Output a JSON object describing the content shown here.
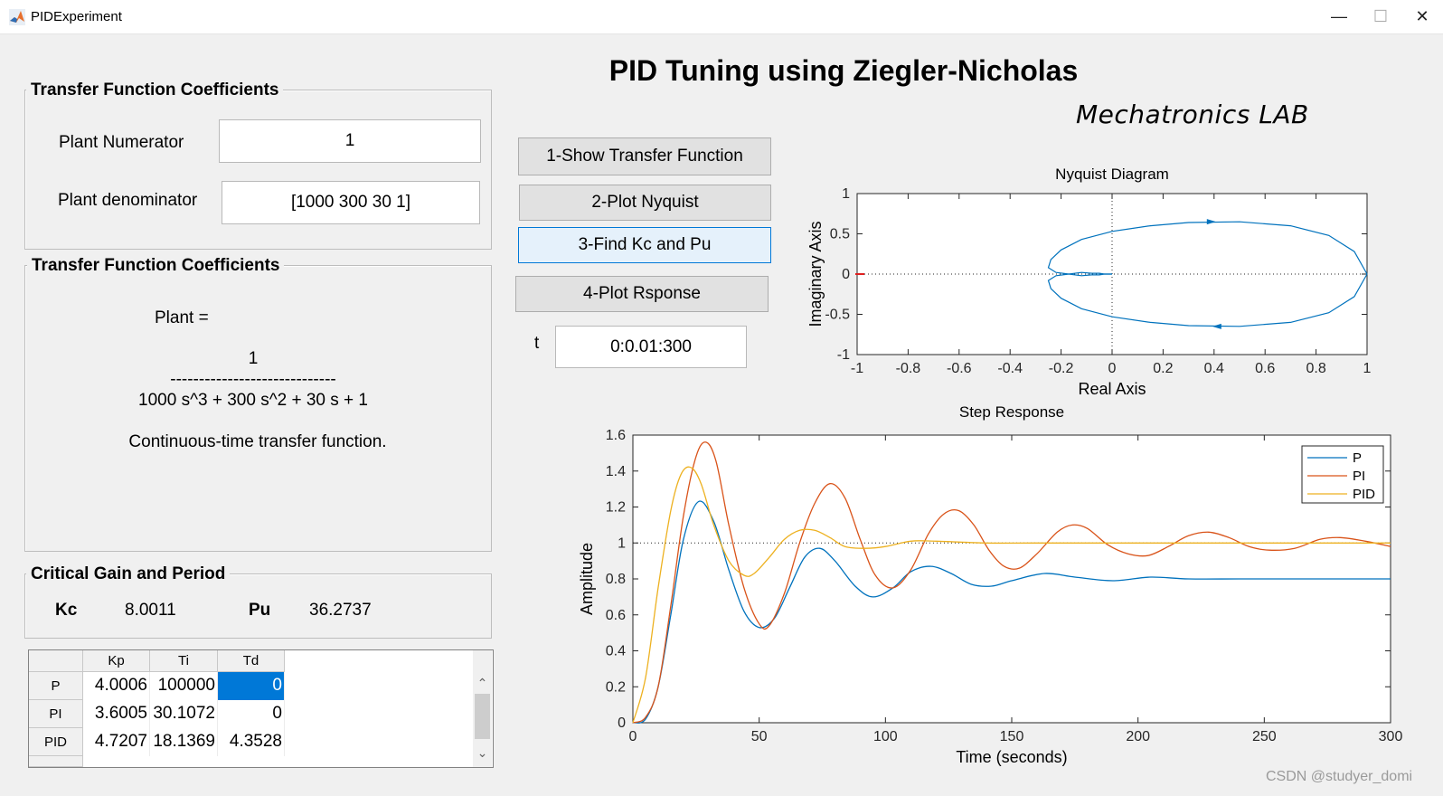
{
  "window": {
    "title": "PIDExperiment",
    "min": "—",
    "max": "☐",
    "close": "✕"
  },
  "main_title": "PID Tuning using Ziegler-Nicholas",
  "lab_logo": "Mechatronics LAB",
  "panel_coeff": {
    "title": "Transfer Function Coefficients",
    "numerator_label": "Plant Numerator",
    "numerator_value": "1",
    "denominator_label": "Plant denominator",
    "denominator_value": "[1000 300 30 1]"
  },
  "panel_tf": {
    "title": "Transfer Function Coefficients",
    "plant_label": "Plant =",
    "num": "1",
    "bar": "-----------------------------",
    "den": "1000 s^3 + 300 s^2 + 30 s + 1",
    "note": "Continuous-time transfer function."
  },
  "panel_critical": {
    "title": "Critical Gain and Period",
    "kc_label": "Kc",
    "kc_value": "8.0011",
    "pu_label": "Pu",
    "pu_value": "36.2737"
  },
  "buttons": {
    "show_tf": "1-Show Transfer Function",
    "plot_nyquist": "2-Plot Nyquist",
    "find_kc": "3-Find Kc and Pu",
    "plot_response": "4-Plot Rsponse"
  },
  "time": {
    "label": "t",
    "value": "0:0.01:300"
  },
  "table": {
    "columns": [
      "Kp",
      "Ti",
      "Td"
    ],
    "rows": [
      {
        "name": "P",
        "values": [
          "4.0006",
          "100000",
          "0"
        ]
      },
      {
        "name": "PI",
        "values": [
          "3.6005",
          "30.1072",
          "0"
        ]
      },
      {
        "name": "PID",
        "values": [
          "4.7207",
          "18.1369",
          "4.3528"
        ]
      }
    ],
    "scroll_up": "⌃",
    "scroll_down": "⌄"
  },
  "colors": {
    "p": "#0072bd",
    "pi": "#d95319",
    "pid": "#edb120",
    "nyquist": "#0072bd",
    "selection": "#0078d7"
  },
  "chart_data": [
    {
      "type": "line",
      "title": "Nyquist Diagram",
      "xlabel": "Real Axis",
      "ylabel": "Imaginary Axis",
      "xlim": [
        -1,
        1
      ],
      "ylim": [
        -1,
        1
      ],
      "xticks": [
        "-1",
        "-0.8",
        "-0.6",
        "-0.4",
        "-0.2",
        "0",
        "0.2",
        "0.4",
        "0.6",
        "0.8",
        "1"
      ],
      "yticks": [
        "-1",
        "-0.5",
        "0",
        "0.5",
        "1"
      ],
      "series": [
        {
          "x": [
            1,
            0.95,
            0.85,
            0.7,
            0.5,
            0.3,
            0.15,
            0.0,
            -0.12,
            -0.2,
            -0.24,
            -0.25,
            -0.22,
            -0.17,
            -0.12,
            -0.08,
            -0.05,
            -0.03,
            -0.01,
            0.0
          ],
          "y": [
            0,
            -0.28,
            -0.48,
            -0.6,
            -0.65,
            -0.64,
            -0.6,
            -0.53,
            -0.43,
            -0.3,
            -0.18,
            -0.08,
            -0.02,
            0.0,
            0.02,
            0.01,
            0.01,
            0.0,
            0.0,
            0.0
          ]
        },
        {
          "x": [
            1,
            0.95,
            0.85,
            0.7,
            0.5,
            0.3,
            0.15,
            0.0,
            -0.12,
            -0.2,
            -0.24,
            -0.25,
            -0.22,
            -0.17,
            -0.12,
            -0.08,
            -0.05,
            -0.03,
            -0.01,
            0.0
          ],
          "y": [
            0,
            0.28,
            0.48,
            0.6,
            0.65,
            0.64,
            0.6,
            0.53,
            0.43,
            0.3,
            0.18,
            0.08,
            0.02,
            0.0,
            -0.02,
            -0.01,
            -0.01,
            0.0,
            0.0,
            0.0
          ]
        }
      ],
      "marker_point": [
        -1,
        0
      ]
    },
    {
      "type": "line",
      "title": "Step Response",
      "xlabel": "Time (seconds)",
      "ylabel": "Amplitude",
      "xlim": [
        0,
        300
      ],
      "ylim": [
        0,
        1.6
      ],
      "xticks": [
        "0",
        "50",
        "100",
        "150",
        "200",
        "250",
        "300"
      ],
      "yticks": [
        "0",
        "0.2",
        "0.4",
        "0.6",
        "0.8",
        "1",
        "1.2",
        "1.4",
        "1.6"
      ],
      "legend_position": "top-right",
      "reference_line": 1,
      "series": [
        {
          "name": "P",
          "x": [
            0,
            5,
            10,
            15,
            20,
            26,
            32,
            38,
            44,
            50,
            56,
            62,
            68,
            74,
            80,
            88,
            95,
            103,
            110,
            118,
            126,
            134,
            142,
            150,
            163,
            175,
            190,
            205,
            220,
            240,
            260,
            280,
            300
          ],
          "y": [
            0,
            0.02,
            0.2,
            0.6,
            1.02,
            1.23,
            1.12,
            0.85,
            0.62,
            0.53,
            0.58,
            0.75,
            0.92,
            0.97,
            0.9,
            0.76,
            0.7,
            0.75,
            0.84,
            0.87,
            0.83,
            0.77,
            0.76,
            0.79,
            0.83,
            0.81,
            0.79,
            0.81,
            0.8,
            0.8,
            0.8,
            0.8,
            0.8
          ]
        },
        {
          "name": "PI",
          "x": [
            0,
            5,
            10,
            15,
            20,
            25,
            29,
            33,
            38,
            44,
            50,
            54,
            60,
            66,
            72,
            78,
            84,
            90,
            96,
            103,
            110,
            117,
            123,
            129,
            135,
            141,
            147,
            153,
            160,
            168,
            174,
            180,
            188,
            196,
            204,
            212,
            220,
            228,
            236,
            244,
            252,
            262,
            272,
            280,
            290,
            300
          ],
          "y": [
            0,
            0.03,
            0.2,
            0.65,
            1.15,
            1.48,
            1.56,
            1.45,
            1.1,
            0.75,
            0.55,
            0.54,
            0.72,
            1.0,
            1.22,
            1.33,
            1.25,
            1.02,
            0.82,
            0.75,
            0.85,
            1.05,
            1.16,
            1.18,
            1.1,
            0.96,
            0.87,
            0.86,
            0.94,
            1.06,
            1.1,
            1.08,
            0.99,
            0.94,
            0.93,
            0.98,
            1.04,
            1.06,
            1.03,
            0.98,
            0.96,
            0.97,
            1.02,
            1.03,
            1.01,
            0.98
          ]
        },
        {
          "name": "PID",
          "x": [
            0,
            5,
            10,
            15,
            19,
            23,
            27,
            32,
            38,
            44,
            48,
            54,
            60,
            66,
            72,
            78,
            84,
            92,
            100,
            110,
            120,
            140,
            160,
            200,
            250,
            300
          ],
          "y": [
            0,
            0.25,
            0.75,
            1.18,
            1.38,
            1.42,
            1.33,
            1.1,
            0.9,
            0.82,
            0.83,
            0.92,
            1.02,
            1.07,
            1.07,
            1.03,
            0.98,
            0.97,
            0.98,
            1.01,
            1.01,
            1.0,
            1.0,
            1.0,
            1.0,
            1.0
          ]
        }
      ]
    }
  ]
}
